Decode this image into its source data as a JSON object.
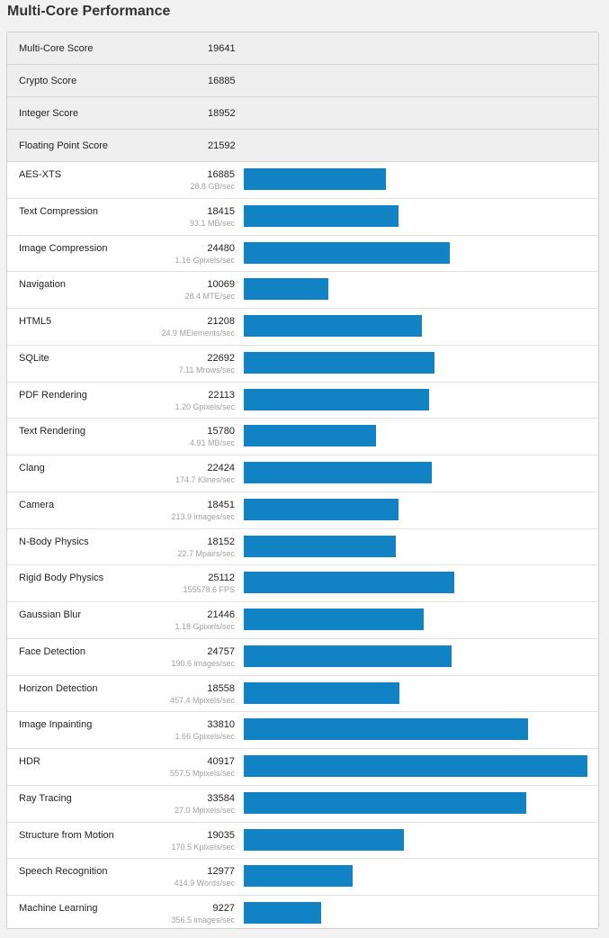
{
  "page": {
    "title": "Multi-Core Performance"
  },
  "summary": [
    {
      "label": "Multi-Core Score",
      "value": "19641"
    },
    {
      "label": "Crypto Score",
      "value": "16885"
    },
    {
      "label": "Integer Score",
      "value": "18952"
    },
    {
      "label": "Floating Point Score",
      "value": "21592"
    }
  ],
  "workloads": [
    {
      "name": "AES-XTS",
      "score": "16885",
      "rate": "28.8 GB/sec"
    },
    {
      "name": "Text Compression",
      "score": "18415",
      "rate": "93.1 MB/sec"
    },
    {
      "name": "Image Compression",
      "score": "24480",
      "rate": "1.16 Gpixels/sec"
    },
    {
      "name": "Navigation",
      "score": "10069",
      "rate": "28.4 MTE/sec"
    },
    {
      "name": "HTML5",
      "score": "21208",
      "rate": "24.9 MElements/sec"
    },
    {
      "name": "SQLite",
      "score": "22692",
      "rate": "7.11 Mrows/sec"
    },
    {
      "name": "PDF Rendering",
      "score": "22113",
      "rate": "1.20 Gpixels/sec"
    },
    {
      "name": "Text Rendering",
      "score": "15780",
      "rate": "4.91 MB/sec"
    },
    {
      "name": "Clang",
      "score": "22424",
      "rate": "174.7 Klines/sec"
    },
    {
      "name": "Camera",
      "score": "18451",
      "rate": "213.9 images/sec"
    },
    {
      "name": "N-Body Physics",
      "score": "18152",
      "rate": "22.7 Mpairs/sec"
    },
    {
      "name": "Rigid Body Physics",
      "score": "25112",
      "rate": "155578.6 FPS"
    },
    {
      "name": "Gaussian Blur",
      "score": "21446",
      "rate": "1.18 Gpixels/sec"
    },
    {
      "name": "Face Detection",
      "score": "24757",
      "rate": "190.6 images/sec"
    },
    {
      "name": "Horizon Detection",
      "score": "18558",
      "rate": "457.4 Mpixels/sec"
    },
    {
      "name": "Image Inpainting",
      "score": "33810",
      "rate": "1.66 Gpixels/sec"
    },
    {
      "name": "HDR",
      "score": "40917",
      "rate": "557.5 Mpixels/sec"
    },
    {
      "name": "Ray Tracing",
      "score": "33584",
      "rate": "27.0 Mpixels/sec"
    },
    {
      "name": "Structure from Motion",
      "score": "19035",
      "rate": "170.5 Kpixels/sec"
    },
    {
      "name": "Speech Recognition",
      "score": "12977",
      "rate": "414.9 Words/sec"
    },
    {
      "name": "Machine Learning",
      "score": "9227",
      "rate": "356.5 images/sec"
    }
  ],
  "colors": {
    "bar": "#1183c5",
    "summary_bg": "#efefef"
  }
}
